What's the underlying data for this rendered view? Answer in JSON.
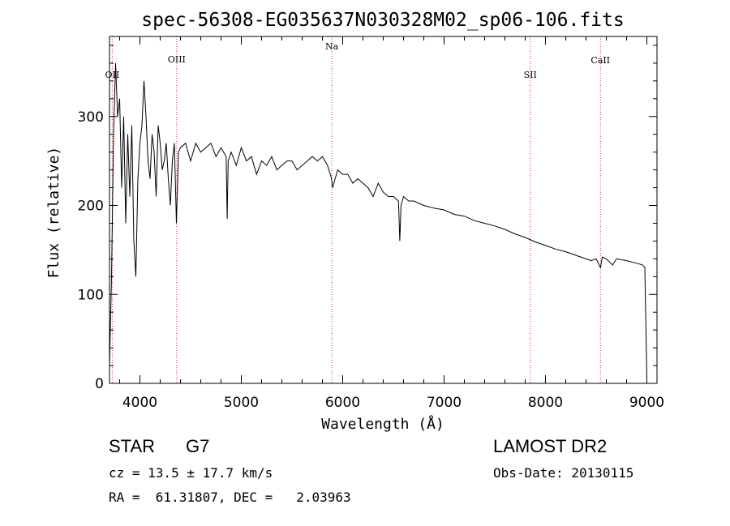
{
  "chart_data": {
    "type": "line",
    "title": "spec-56308-EG035637N030328M02_sp06-106.fits",
    "xlabel": "Wavelength (Å)",
    "ylabel": "Flux (relative)",
    "xlim": [
      3700,
      9100
    ],
    "ylim": [
      0,
      390
    ],
    "x_ticks": [
      4000,
      5000,
      6000,
      7000,
      8000,
      9000
    ],
    "y_ticks": [
      0,
      100,
      200,
      300
    ],
    "grid": false,
    "series": [
      {
        "x": [
          3700,
          3720,
          3740,
          3760,
          3780,
          3800,
          3820,
          3840,
          3860,
          3880,
          3900,
          3920,
          3940,
          3960,
          3980,
          4000,
          4020,
          4040,
          4060,
          4080,
          4100,
          4120,
          4140,
          4160,
          4180,
          4200,
          4220,
          4240,
          4260,
          4280,
          4300,
          4320,
          4340,
          4360,
          4380,
          4400,
          4450,
          4500,
          4550,
          4600,
          4650,
          4700,
          4750,
          4800,
          4850,
          4861,
          4870,
          4900,
          4950,
          5000,
          5050,
          5100,
          5150,
          5200,
          5250,
          5300,
          5350,
          5400,
          5450,
          5500,
          5550,
          5600,
          5650,
          5700,
          5750,
          5800,
          5850,
          5890,
          5900,
          5950,
          6000,
          6050,
          6100,
          6150,
          6200,
          6250,
          6300,
          6350,
          6400,
          6450,
          6500,
          6550,
          6563,
          6575,
          6600,
          6650,
          6700,
          6800,
          6900,
          7000,
          7100,
          7200,
          7300,
          7400,
          7500,
          7600,
          7700,
          7800,
          7900,
          8000,
          8100,
          8200,
          8300,
          8400,
          8450,
          8500,
          8542,
          8560,
          8600,
          8662,
          8700,
          8800,
          8900,
          8960,
          8980,
          9000
        ],
        "y": [
          20,
          120,
          280,
          360,
          300,
          320,
          220,
          300,
          180,
          280,
          210,
          290,
          160,
          120,
          230,
          270,
          290,
          340,
          300,
          250,
          230,
          280,
          260,
          210,
          290,
          270,
          240,
          250,
          270,
          230,
          200,
          250,
          270,
          180,
          260,
          265,
          270,
          250,
          270,
          260,
          265,
          270,
          255,
          265,
          255,
          185,
          250,
          260,
          245,
          265,
          250,
          255,
          235,
          250,
          245,
          255,
          240,
          245,
          250,
          250,
          240,
          245,
          250,
          255,
          250,
          255,
          245,
          230,
          220,
          240,
          235,
          235,
          225,
          230,
          225,
          220,
          210,
          225,
          215,
          210,
          210,
          205,
          160,
          200,
          210,
          205,
          205,
          200,
          197,
          195,
          190,
          188,
          183,
          180,
          177,
          173,
          168,
          164,
          159,
          155,
          151,
          148,
          144,
          140,
          138,
          140,
          130,
          142,
          140,
          133,
          140,
          138,
          135,
          133,
          130,
          5
        ]
      }
    ],
    "annotations": [
      {
        "label": "OII",
        "x": 3727
      },
      {
        "label": "OIII",
        "x": 4363
      },
      {
        "label": "Na",
        "x": 5893
      },
      {
        "label": "SII",
        "x": 7850
      },
      {
        "label": "CaII",
        "x": 8542
      }
    ]
  },
  "info": {
    "class": "STAR",
    "subclass": "G7",
    "survey": "LAMOST DR2",
    "cz": "cz = 13.5 ± 17.7 km/s",
    "obs_date": "Obs-Date: 20130115",
    "coords": "RA =  61.31807, DEC =   2.03963"
  }
}
